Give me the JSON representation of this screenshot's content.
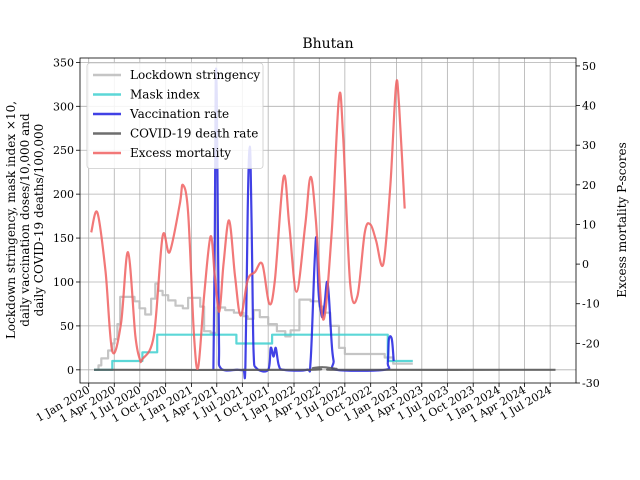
{
  "chart_data": {
    "type": "line",
    "title": "Bhutan",
    "ylabel_left": [
      "Lockdown stringency, mask index ×10,",
      "daily vaccination doses/10,000 and",
      "daily COVID-19 deaths/100,000"
    ],
    "ylabel_right": "Excess mortality P-scores",
    "grid": true,
    "legend_position": "top-left",
    "left_axis": {
      "ylim": [
        -15,
        355
      ],
      "ticks": [
        0,
        50,
        100,
        150,
        200,
        250,
        300,
        350
      ]
    },
    "right_axis": {
      "ylim": [
        -30,
        52
      ],
      "ticks": [
        -30,
        -20,
        -10,
        0,
        10,
        20,
        30,
        40,
        50
      ]
    },
    "x_axis": {
      "start": "2020-01-01",
      "xlim": [
        "2019-12-01",
        "2024-10-01"
      ],
      "ticks": [
        {
          "date": "2020-01-01",
          "label": "1 Jan 2020"
        },
        {
          "date": "2020-04-01",
          "label": "1 Apr 2020"
        },
        {
          "date": "2020-07-01",
          "label": "1 Jul 2020"
        },
        {
          "date": "2020-10-01",
          "label": "1 Oct 2020"
        },
        {
          "date": "2021-01-01",
          "label": "1 Jan 2021"
        },
        {
          "date": "2021-04-01",
          "label": "1 Apr 2021"
        },
        {
          "date": "2021-07-01",
          "label": "1 Jul 2021"
        },
        {
          "date": "2021-10-01",
          "label": "1 Oct 2021"
        },
        {
          "date": "2022-01-01",
          "label": "1 Jan 2022"
        },
        {
          "date": "2022-04-01",
          "label": "1 Apr 2022"
        },
        {
          "date": "2022-07-01",
          "label": "1 Jul 2022"
        },
        {
          "date": "2022-10-01",
          "label": "1 Oct 2022"
        },
        {
          "date": "2023-01-01",
          "label": "1 Jan 2023"
        },
        {
          "date": "2023-04-01",
          "label": "1 Apr 2023"
        },
        {
          "date": "2023-07-01",
          "label": "1 Jul 2023"
        },
        {
          "date": "2023-10-01",
          "label": "1 Oct 2023"
        },
        {
          "date": "2024-01-01",
          "label": "1 Jan 2024"
        },
        {
          "date": "2024-04-01",
          "label": "1 Apr 2024"
        },
        {
          "date": "2024-07-01",
          "label": "1 Jul 2024"
        }
      ]
    },
    "series": [
      {
        "name": "Lockdown stringency",
        "color": "#bbbbbb",
        "axis": "left",
        "step": true,
        "points": [
          [
            "2020-01-20",
            0
          ],
          [
            "2020-02-05",
            5
          ],
          [
            "2020-02-15",
            13
          ],
          [
            "2020-03-10",
            22
          ],
          [
            "2020-03-25",
            30
          ],
          [
            "2020-04-02",
            35
          ],
          [
            "2020-04-12",
            52
          ],
          [
            "2020-04-22",
            83
          ],
          [
            "2020-06-12",
            78
          ],
          [
            "2020-06-30",
            70
          ],
          [
            "2020-07-20",
            63
          ],
          [
            "2020-08-10",
            81
          ],
          [
            "2020-08-25",
            98
          ],
          [
            "2020-09-05",
            90
          ],
          [
            "2020-09-20",
            85
          ],
          [
            "2020-10-10",
            79
          ],
          [
            "2020-11-05",
            73
          ],
          [
            "2020-12-01",
            70
          ],
          [
            "2020-12-20",
            82
          ],
          [
            "2021-02-01",
            72
          ],
          [
            "2021-02-15",
            44
          ],
          [
            "2021-03-10",
            42
          ],
          [
            "2021-04-01",
            71
          ],
          [
            "2021-05-01",
            68
          ],
          [
            "2021-06-01",
            65
          ],
          [
            "2021-07-05",
            61
          ],
          [
            "2021-07-20",
            58
          ],
          [
            "2021-08-10",
            68
          ],
          [
            "2021-09-01",
            60
          ],
          [
            "2021-10-01",
            52
          ],
          [
            "2021-11-01",
            44
          ],
          [
            "2021-12-01",
            38
          ],
          [
            "2021-12-20",
            45
          ],
          [
            "2022-01-20",
            80
          ],
          [
            "2022-03-01",
            78
          ],
          [
            "2022-04-01",
            72
          ],
          [
            "2022-04-15",
            65
          ],
          [
            "2022-05-10",
            50
          ],
          [
            "2022-06-10",
            25
          ],
          [
            "2022-07-01",
            18
          ],
          [
            "2022-11-20",
            14
          ],
          [
            "2022-12-20",
            7
          ],
          [
            "2023-02-28",
            7
          ]
        ]
      },
      {
        "name": "Mask index",
        "color": "#40d0d0",
        "axis": "left",
        "step": true,
        "points": [
          [
            "2020-01-20",
            0
          ],
          [
            "2020-03-25",
            10
          ],
          [
            "2020-07-10",
            20
          ],
          [
            "2020-09-01",
            40
          ],
          [
            "2021-05-01",
            40
          ],
          [
            "2021-06-10",
            30
          ],
          [
            "2021-10-01",
            30
          ],
          [
            "2021-10-15",
            40
          ],
          [
            "2022-12-01",
            10
          ],
          [
            "2023-02-28",
            10
          ]
        ]
      },
      {
        "name": "Vaccination rate",
        "color": "#2020e0",
        "axis": "left",
        "step": false,
        "points": [
          [
            "2021-03-20",
            0
          ],
          [
            "2021-03-25",
            150
          ],
          [
            "2021-03-28",
            330
          ],
          [
            "2021-04-01",
            310
          ],
          [
            "2021-04-05",
            160
          ],
          [
            "2021-04-09",
            30
          ],
          [
            "2021-04-15",
            2
          ],
          [
            "2021-06-15",
            0
          ],
          [
            "2021-07-05",
            0
          ],
          [
            "2021-07-12",
            5
          ],
          [
            "2021-07-20",
            180
          ],
          [
            "2021-07-25",
            245
          ],
          [
            "2021-07-30",
            240
          ],
          [
            "2021-08-05",
            120
          ],
          [
            "2021-08-10",
            20
          ],
          [
            "2021-08-20",
            2
          ],
          [
            "2021-10-01",
            0
          ],
          [
            "2021-10-10",
            25
          ],
          [
            "2021-10-20",
            15
          ],
          [
            "2021-10-28",
            25
          ],
          [
            "2021-11-08",
            5
          ],
          [
            "2021-11-25",
            0
          ],
          [
            "2022-02-15",
            0
          ],
          [
            "2022-03-01",
            10
          ],
          [
            "2022-03-15",
            120
          ],
          [
            "2022-03-22",
            150
          ],
          [
            "2022-03-29",
            90
          ],
          [
            "2022-04-05",
            70
          ],
          [
            "2022-04-12",
            60
          ],
          [
            "2022-04-20",
            75
          ],
          [
            "2022-04-28",
            100
          ],
          [
            "2022-05-05",
            85
          ],
          [
            "2022-05-15",
            30
          ],
          [
            "2022-05-22",
            10
          ],
          [
            "2022-06-01",
            0
          ],
          [
            "2022-11-20",
            0
          ],
          [
            "2022-12-01",
            8
          ],
          [
            "2022-12-05",
            35
          ],
          [
            "2022-12-15",
            35
          ],
          [
            "2022-12-22",
            10
          ]
        ]
      },
      {
        "name": "COVID-19 death rate",
        "color": "#555555",
        "axis": "left",
        "step": false,
        "points": [
          [
            "2020-01-20",
            0
          ],
          [
            "2022-02-01",
            0
          ],
          [
            "2022-03-10",
            2
          ],
          [
            "2022-04-15",
            3
          ],
          [
            "2022-06-01",
            1
          ],
          [
            "2022-07-01",
            0
          ],
          [
            "2024-07-20",
            0
          ]
        ]
      },
      {
        "name": "Excess mortality",
        "color": "#f06060",
        "axis": "right",
        "step": false,
        "points": [
          [
            "2020-01-10",
            8
          ],
          [
            "2020-02-01",
            13
          ],
          [
            "2020-03-01",
            -2
          ],
          [
            "2020-03-25",
            -22
          ],
          [
            "2020-04-25",
            -15
          ],
          [
            "2020-05-20",
            3
          ],
          [
            "2020-06-15",
            -18
          ],
          [
            "2020-07-01",
            -24
          ],
          [
            "2020-07-10",
            -24
          ],
          [
            "2020-08-20",
            -18
          ],
          [
            "2020-09-20",
            7
          ],
          [
            "2020-10-15",
            3
          ],
          [
            "2020-11-20",
            15
          ],
          [
            "2020-12-01",
            20
          ],
          [
            "2020-12-20",
            13
          ],
          [
            "2021-01-10",
            -18
          ],
          [
            "2021-01-25",
            -26
          ],
          [
            "2021-02-15",
            -8
          ],
          [
            "2021-03-10",
            7
          ],
          [
            "2021-03-25",
            -3
          ],
          [
            "2021-04-10",
            -12
          ],
          [
            "2021-04-25",
            0
          ],
          [
            "2021-05-15",
            11
          ],
          [
            "2021-06-05",
            -3
          ],
          [
            "2021-06-25",
            -13
          ],
          [
            "2021-07-20",
            -4
          ],
          [
            "2021-08-15",
            -2
          ],
          [
            "2021-09-10",
            0
          ],
          [
            "2021-10-05",
            -10
          ],
          [
            "2021-10-25",
            -4
          ],
          [
            "2021-11-25",
            22
          ],
          [
            "2021-12-15",
            10
          ],
          [
            "2022-01-10",
            -7
          ],
          [
            "2022-02-10",
            10
          ],
          [
            "2022-03-01",
            22
          ],
          [
            "2022-03-20",
            11
          ],
          [
            "2022-04-15",
            -14
          ],
          [
            "2022-05-15",
            8
          ],
          [
            "2022-06-10",
            42
          ],
          [
            "2022-06-25",
            32
          ],
          [
            "2022-07-20",
            -5
          ],
          [
            "2022-08-15",
            -8
          ],
          [
            "2022-09-10",
            8
          ],
          [
            "2022-09-30",
            10
          ],
          [
            "2022-10-20",
            6
          ],
          [
            "2022-11-15",
            0
          ],
          [
            "2022-12-10",
            20
          ],
          [
            "2022-12-30",
            45
          ],
          [
            "2023-01-10",
            40
          ],
          [
            "2023-01-30",
            14
          ]
        ]
      }
    ]
  }
}
